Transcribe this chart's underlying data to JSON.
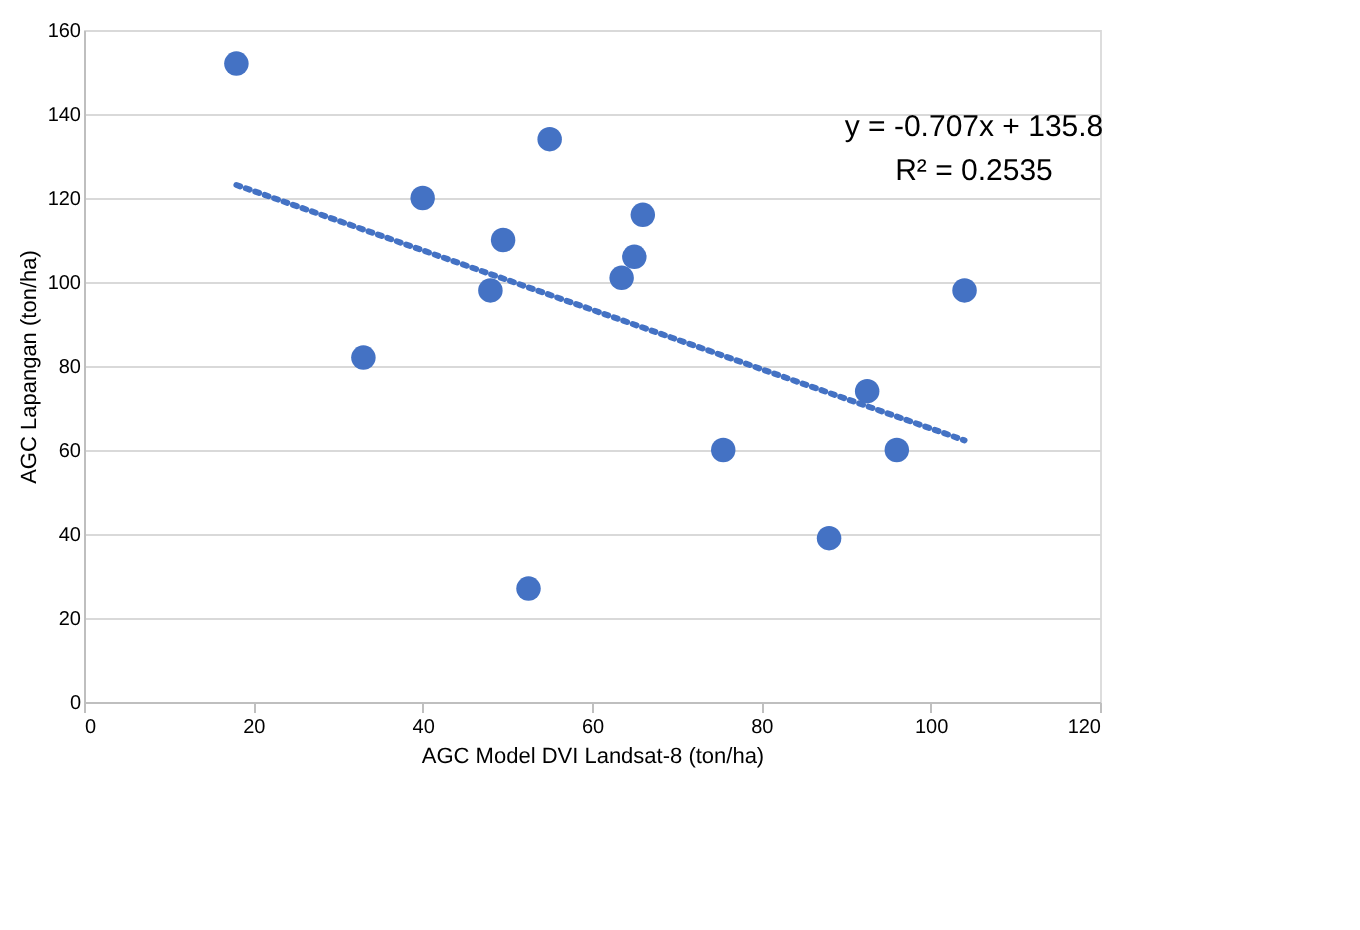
{
  "chart_data": {
    "type": "scatter",
    "xlabel": "AGC Model DVI Landsat-8 (ton/ha)",
    "ylabel": "AGC Lapangan (ton/ha)",
    "xlim": [
      0,
      120
    ],
    "xticks": [
      0,
      20,
      40,
      60,
      80,
      100,
      120
    ],
    "ylim": [
      0,
      160
    ],
    "yticks": [
      0,
      20,
      40,
      60,
      80,
      100,
      120,
      140,
      160
    ],
    "grid": "y",
    "annotations": [
      "y = -0.707x + 135.8",
      "R² = 0.2535"
    ],
    "series": [
      {
        "color": "#4472c4",
        "marker": "circle",
        "x": [
          18,
          33,
          40,
          48,
          49.5,
          52.5,
          55,
          63.5,
          65,
          66,
          75.5,
          88,
          92.5,
          96,
          104
        ],
        "values": [
          152,
          82,
          120,
          98,
          110,
          27,
          134,
          101,
          106,
          116,
          60,
          39,
          74,
          60,
          98
        ]
      },
      {
        "type": "line",
        "color": "#4472c4",
        "line_style": "dotted",
        "marker": "none",
        "x": [
          18,
          104
        ],
        "values": [
          123.1,
          62.3
        ]
      }
    ]
  }
}
